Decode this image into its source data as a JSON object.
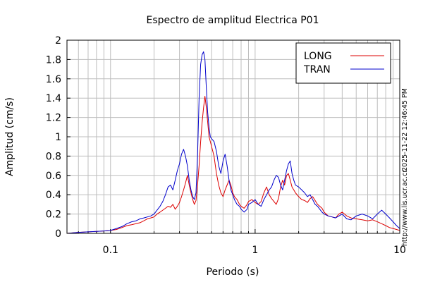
{
  "chart_data": {
    "type": "line",
    "title": "Espectro de amplitud Electrica P01",
    "xlabel": "Periodo (s)",
    "ylabel": "Amplitud (cm/s)",
    "x_scale": "log",
    "xlim": [
      0.05,
      10
    ],
    "ylim": [
      0,
      2
    ],
    "x_ticks": [
      {
        "value": 0.1,
        "label": "0.1"
      },
      {
        "value": 1,
        "label": "1"
      },
      {
        "value": 10,
        "label": "10"
      }
    ],
    "y_ticks": [
      {
        "value": 0,
        "label": "0"
      },
      {
        "value": 0.2,
        "label": "0.2"
      },
      {
        "value": 0.4,
        "label": "0.4"
      },
      {
        "value": 0.6,
        "label": "0.6"
      },
      {
        "value": 0.8,
        "label": "0.8"
      },
      {
        "value": 1,
        "label": "1"
      },
      {
        "value": 1.2,
        "label": "1.2"
      },
      {
        "value": 1.4,
        "label": "1.4"
      },
      {
        "value": 1.6,
        "label": "1.6"
      },
      {
        "value": 1.8,
        "label": "1.8"
      },
      {
        "value": 2,
        "label": "2"
      }
    ],
    "grid": true,
    "legend_position": "top-right",
    "series": [
      {
        "name": "LONG",
        "color": "#dd0000",
        "x": [
          0.05,
          0.06,
          0.07,
          0.08,
          0.09,
          0.1,
          0.11,
          0.12,
          0.13,
          0.14,
          0.15,
          0.16,
          0.17,
          0.18,
          0.19,
          0.2,
          0.21,
          0.22,
          0.23,
          0.24,
          0.25,
          0.26,
          0.27,
          0.28,
          0.29,
          0.3,
          0.31,
          0.32,
          0.33,
          0.34,
          0.35,
          0.36,
          0.37,
          0.38,
          0.39,
          0.4,
          0.41,
          0.42,
          0.43,
          0.44,
          0.45,
          0.46,
          0.47,
          0.48,
          0.49,
          0.5,
          0.52,
          0.54,
          0.56,
          0.58,
          0.6,
          0.62,
          0.64,
          0.66,
          0.68,
          0.7,
          0.72,
          0.75,
          0.78,
          0.8,
          0.84,
          0.88,
          0.9,
          0.95,
          1.0,
          1.05,
          1.1,
          1.15,
          1.2,
          1.25,
          1.3,
          1.35,
          1.4,
          1.45,
          1.5,
          1.55,
          1.6,
          1.65,
          1.7,
          1.75,
          1.8,
          1.85,
          1.9,
          2.0,
          2.1,
          2.2,
          2.3,
          2.4,
          2.5,
          2.6,
          2.7,
          2.8,
          2.9,
          3.0,
          3.2,
          3.4,
          3.6,
          3.8,
          4.0,
          4.3,
          4.6,
          5.0,
          5.5,
          6.0,
          6.5,
          7.0,
          7.5,
          8.0,
          8.5,
          9.0,
          9.5,
          10.0
        ],
        "y": [
          0.0,
          0.01,
          0.015,
          0.02,
          0.025,
          0.03,
          0.04,
          0.06,
          0.08,
          0.09,
          0.1,
          0.11,
          0.13,
          0.15,
          0.16,
          0.17,
          0.2,
          0.22,
          0.24,
          0.26,
          0.28,
          0.27,
          0.3,
          0.25,
          0.28,
          0.32,
          0.38,
          0.45,
          0.52,
          0.6,
          0.5,
          0.42,
          0.35,
          0.3,
          0.34,
          0.5,
          0.7,
          0.95,
          1.15,
          1.3,
          1.42,
          1.3,
          1.15,
          1.0,
          0.95,
          0.9,
          0.8,
          0.62,
          0.5,
          0.42,
          0.38,
          0.45,
          0.5,
          0.55,
          0.5,
          0.42,
          0.38,
          0.35,
          0.3,
          0.28,
          0.26,
          0.3,
          0.33,
          0.35,
          0.32,
          0.3,
          0.33,
          0.42,
          0.48,
          0.4,
          0.36,
          0.33,
          0.3,
          0.36,
          0.48,
          0.55,
          0.5,
          0.6,
          0.62,
          0.55,
          0.48,
          0.45,
          0.42,
          0.38,
          0.35,
          0.34,
          0.32,
          0.36,
          0.38,
          0.34,
          0.3,
          0.28,
          0.26,
          0.22,
          0.18,
          0.17,
          0.16,
          0.2,
          0.22,
          0.18,
          0.16,
          0.15,
          0.14,
          0.13,
          0.14,
          0.12,
          0.1,
          0.08,
          0.06,
          0.05,
          0.04,
          0.03
        ]
      },
      {
        "name": "TRAN",
        "color": "#0000cc",
        "x": [
          0.05,
          0.06,
          0.07,
          0.08,
          0.09,
          0.1,
          0.11,
          0.12,
          0.13,
          0.14,
          0.15,
          0.16,
          0.17,
          0.18,
          0.19,
          0.2,
          0.21,
          0.22,
          0.23,
          0.24,
          0.25,
          0.26,
          0.27,
          0.28,
          0.29,
          0.3,
          0.31,
          0.32,
          0.33,
          0.34,
          0.35,
          0.36,
          0.37,
          0.38,
          0.39,
          0.4,
          0.41,
          0.42,
          0.43,
          0.44,
          0.45,
          0.46,
          0.47,
          0.48,
          0.49,
          0.5,
          0.52,
          0.54,
          0.56,
          0.58,
          0.6,
          0.62,
          0.64,
          0.66,
          0.68,
          0.7,
          0.72,
          0.75,
          0.78,
          0.8,
          0.84,
          0.88,
          0.9,
          0.95,
          1.0,
          1.05,
          1.1,
          1.15,
          1.2,
          1.25,
          1.3,
          1.35,
          1.4,
          1.45,
          1.5,
          1.55,
          1.6,
          1.65,
          1.7,
          1.75,
          1.8,
          1.85,
          1.9,
          2.0,
          2.1,
          2.2,
          2.3,
          2.4,
          2.5,
          2.6,
          2.7,
          2.8,
          2.9,
          3.0,
          3.2,
          3.4,
          3.6,
          3.8,
          4.0,
          4.3,
          4.6,
          5.0,
          5.5,
          6.0,
          6.5,
          7.0,
          7.5,
          8.0,
          8.5,
          9.0,
          9.5,
          10.0
        ],
        "y": [
          0.0,
          0.01,
          0.015,
          0.02,
          0.025,
          0.03,
          0.05,
          0.07,
          0.1,
          0.12,
          0.13,
          0.15,
          0.16,
          0.17,
          0.18,
          0.2,
          0.24,
          0.28,
          0.33,
          0.4,
          0.48,
          0.5,
          0.45,
          0.55,
          0.65,
          0.72,
          0.82,
          0.87,
          0.8,
          0.7,
          0.55,
          0.45,
          0.38,
          0.35,
          0.42,
          0.8,
          1.4,
          1.75,
          1.85,
          1.88,
          1.8,
          1.5,
          1.25,
          1.1,
          1.0,
          0.98,
          0.95,
          0.85,
          0.7,
          0.62,
          0.75,
          0.82,
          0.7,
          0.55,
          0.45,
          0.4,
          0.35,
          0.3,
          0.28,
          0.25,
          0.22,
          0.25,
          0.3,
          0.32,
          0.35,
          0.3,
          0.28,
          0.35,
          0.4,
          0.45,
          0.48,
          0.55,
          0.6,
          0.58,
          0.5,
          0.45,
          0.55,
          0.65,
          0.72,
          0.75,
          0.62,
          0.55,
          0.5,
          0.48,
          0.45,
          0.42,
          0.38,
          0.4,
          0.35,
          0.3,
          0.28,
          0.25,
          0.22,
          0.2,
          0.18,
          0.17,
          0.16,
          0.18,
          0.2,
          0.15,
          0.14,
          0.18,
          0.2,
          0.18,
          0.15,
          0.2,
          0.24,
          0.2,
          0.16,
          0.12,
          0.08,
          0.05
        ]
      }
    ],
    "side_text": {
      "timestamp": "2025-11-22 12:46:45 PM",
      "website": "http://www.lis.ucr.ac.cr"
    }
  }
}
